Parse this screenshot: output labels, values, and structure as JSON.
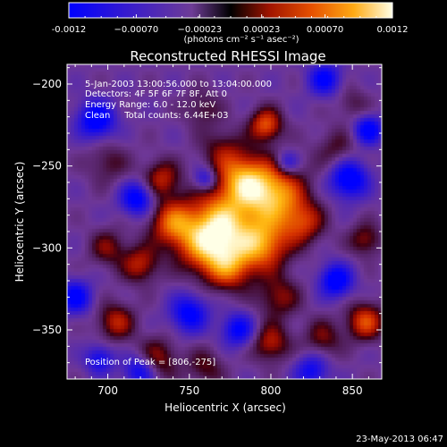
{
  "chart_data": {
    "type": "heatmap",
    "title": "Reconstructed RHESSI Image",
    "xlabel": "Heliocentric X (arcsec)",
    "ylabel": "Heliocentric Y (arcsec)",
    "xlim": [
      675,
      868
    ],
    "ylim": [
      -380,
      -188
    ],
    "x_ticks": [
      700,
      750,
      800,
      850
    ],
    "y_ticks": [
      -200,
      -250,
      -300,
      -350
    ],
    "colorbar": {
      "range": [
        -0.0012,
        0.0012
      ],
      "ticks": [
        -0.0012,
        -0.0007,
        -0.00023,
        0.00023,
        0.0007,
        0.0012
      ],
      "tick_labels": [
        "-0.0012",
        "−0.00070",
        "−0.00023",
        "0.00023",
        "0.00070",
        "0.0012"
      ],
      "unit": "(photons cm⁻² s⁻¹ asec⁻²)"
    },
    "annotations": {
      "time": "5-Jan-2003 13:00:56.000 to 13:04:00.000",
      "detectors": "Detectors: 4F 5F 6F 7F 8F, Att 0",
      "energy": "Energy Range: 6.0 - 12.0 keV",
      "method": "Clean     Total counts: 6.44E+03",
      "peak": "Position of Peak = [806,-275]"
    },
    "sources": [
      {
        "x": 770,
        "y": -285,
        "amp": 1.0,
        "w": 14
      },
      {
        "x": 802,
        "y": -268,
        "amp": 1.0,
        "w": 13
      },
      {
        "x": 783,
        "y": -258,
        "amp": 0.85,
        "w": 11
      },
      {
        "x": 760,
        "y": -300,
        "amp": 0.7,
        "w": 12
      },
      {
        "x": 740,
        "y": -285,
        "amp": 0.75,
        "w": 10
      },
      {
        "x": 795,
        "y": -298,
        "amp": 0.85,
        "w": 11
      },
      {
        "x": 775,
        "y": -312,
        "amp": 0.65,
        "w": 10
      },
      {
        "x": 820,
        "y": -285,
        "amp": 0.55,
        "w": 9
      },
      {
        "x": 797,
        "y": -225,
        "amp": 0.75,
        "w": 7
      },
      {
        "x": 770,
        "y": -240,
        "amp": 0.35,
        "w": 9
      },
      {
        "x": 733,
        "y": -258,
        "amp": 0.55,
        "w": 8
      },
      {
        "x": 720,
        "y": -310,
        "amp": 0.55,
        "w": 8
      },
      {
        "x": 700,
        "y": -300,
        "amp": 0.4,
        "w": 8
      },
      {
        "x": 705,
        "y": -345,
        "amp": 0.55,
        "w": 8
      },
      {
        "x": 730,
        "y": -368,
        "amp": 0.5,
        "w": 9
      },
      {
        "x": 760,
        "y": -373,
        "amp": 0.35,
        "w": 8
      },
      {
        "x": 805,
        "y": -330,
        "amp": 0.45,
        "w": 9
      },
      {
        "x": 800,
        "y": -358,
        "amp": 0.55,
        "w": 8
      },
      {
        "x": 832,
        "y": -355,
        "amp": 0.4,
        "w": 8
      },
      {
        "x": 858,
        "y": -345,
        "amp": 0.7,
        "w": 8
      },
      {
        "x": 858,
        "y": -295,
        "amp": 0.45,
        "w": 7
      },
      {
        "x": 700,
        "y": -248,
        "amp": 0.3,
        "w": 9
      },
      {
        "x": 758,
        "y": -215,
        "amp": 0.3,
        "w": 8
      },
      {
        "x": 840,
        "y": -240,
        "amp": 0.3,
        "w": 9
      },
      {
        "x": 850,
        "y": -212,
        "amp": 0.25,
        "w": 7
      }
    ],
    "negatives": [
      {
        "x": 693,
        "y": -222,
        "amp": -0.85,
        "w": 8
      },
      {
        "x": 718,
        "y": -270,
        "amp": -0.8,
        "w": 7
      },
      {
        "x": 848,
        "y": -258,
        "amp": -0.9,
        "w": 8
      },
      {
        "x": 860,
        "y": -228,
        "amp": -0.8,
        "w": 6
      },
      {
        "x": 750,
        "y": -340,
        "amp": -0.75,
        "w": 8
      },
      {
        "x": 720,
        "y": -375,
        "amp": -0.7,
        "w": 7
      },
      {
        "x": 840,
        "y": -320,
        "amp": -0.85,
        "w": 7
      },
      {
        "x": 780,
        "y": -350,
        "amp": -0.7,
        "w": 7
      },
      {
        "x": 833,
        "y": -197,
        "amp": -0.7,
        "w": 7
      },
      {
        "x": 680,
        "y": -330,
        "amp": -0.75,
        "w": 7
      },
      {
        "x": 760,
        "y": -258,
        "amp": -0.55,
        "w": 5
      },
      {
        "x": 810,
        "y": -248,
        "amp": -0.5,
        "w": 5
      },
      {
        "x": 825,
        "y": -375,
        "amp": -0.6,
        "w": 7
      },
      {
        "x": 695,
        "y": -368,
        "amp": -0.6,
        "w": 6
      }
    ]
  },
  "footer": {
    "timestamp": "23-May-2013 06:47"
  }
}
